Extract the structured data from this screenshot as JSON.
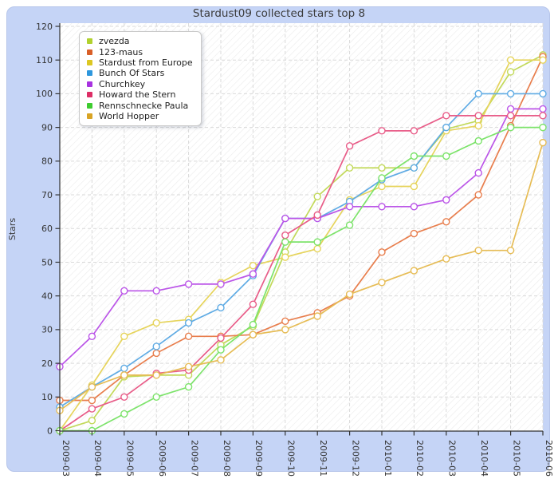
{
  "title": "Stardust09 collected stars top 8",
  "chart_data": {
    "type": "line",
    "title": "Stardust09 collected stars top 8",
    "ylabel": "Stars",
    "ylim": [
      0,
      120
    ],
    "yticks": [
      0,
      10,
      20,
      30,
      40,
      50,
      60,
      70,
      80,
      90,
      100,
      110,
      120
    ],
    "grid": true,
    "legend_position": "upper-left",
    "marker": "circle",
    "x": [
      "2009-03",
      "2009-04",
      "2009-05",
      "2009-06",
      "2009-07",
      "2009-08",
      "2009-09",
      "2009-10",
      "2009-11",
      "2009-12",
      "2010-01",
      "2010-02",
      "2010-03",
      "2010-04",
      "2010-05",
      "2010-06"
    ],
    "series": [
      {
        "name": "zvezda",
        "color": "#c2d95a",
        "swatch": "#b1d12e",
        "values": [
          0,
          3,
          16,
          16.5,
          16.5,
          25.5,
          31,
          53,
          69.5,
          78,
          78,
          78,
          89.5,
          92,
          106.5,
          111.5
        ]
      },
      {
        "name": "123-maus",
        "color": "#e87e4d",
        "swatch": "#d95f28",
        "values": [
          9,
          9,
          16.5,
          23,
          28,
          28,
          28.5,
          32.5,
          35,
          40,
          53,
          58.5,
          62,
          70,
          90.5,
          111
        ]
      },
      {
        "name": "Stardust from Europe",
        "color": "#e6d45c",
        "swatch": "#dcc722",
        "values": [
          0,
          13.5,
          28,
          32,
          33,
          44,
          49,
          51.5,
          54,
          68.5,
          72.5,
          72.5,
          89,
          90.5,
          110,
          110
        ]
      },
      {
        "name": "Bunch Of Stars",
        "color": "#5fabe4",
        "swatch": "#2e97dd",
        "values": [
          7,
          13,
          18.5,
          25,
          32,
          36.5,
          46,
          63,
          63,
          68,
          74.5,
          78,
          90,
          100,
          100,
          100
        ]
      },
      {
        "name": "Churchkey",
        "color": "#bb55e8",
        "swatch": "#a832e0",
        "values": [
          19,
          28,
          41.5,
          41.5,
          43.5,
          43.5,
          46.5,
          63,
          63,
          66.5,
          66.5,
          66.5,
          68.5,
          76.5,
          95.5,
          95.5
        ]
      },
      {
        "name": "Howard the Stern",
        "color": "#e85c88",
        "swatch": "#dd2e66",
        "values": [
          0,
          6.5,
          10,
          17,
          18,
          27.5,
          37.5,
          58,
          64,
          84.5,
          89,
          89,
          93.5,
          93.5,
          93.5,
          93.5
        ]
      },
      {
        "name": "Rennschnecke Paula",
        "color": "#7ce36a",
        "swatch": "#3ecc30",
        "values": [
          0,
          0,
          5,
          10,
          13,
          24,
          31.5,
          56,
          56,
          61,
          75,
          81.5,
          81.5,
          86,
          90,
          90
        ]
      },
      {
        "name": "World Hopper",
        "color": "#e6bc55",
        "swatch": "#d9a425",
        "values": [
          6,
          13,
          16.5,
          16.5,
          19,
          21,
          28.5,
          30,
          34,
          40.5,
          44,
          47.5,
          51,
          53.5,
          53.5,
          85.5
        ]
      }
    ]
  },
  "colors": {
    "panel_bg": "#c5d4f6",
    "plot_bg": "#ffffff",
    "hatch": "#ebebeb",
    "grid": "#d9d9d9",
    "axis": "#333333",
    "title_text": "#3c3c3c",
    "tick_text": "#333333"
  }
}
